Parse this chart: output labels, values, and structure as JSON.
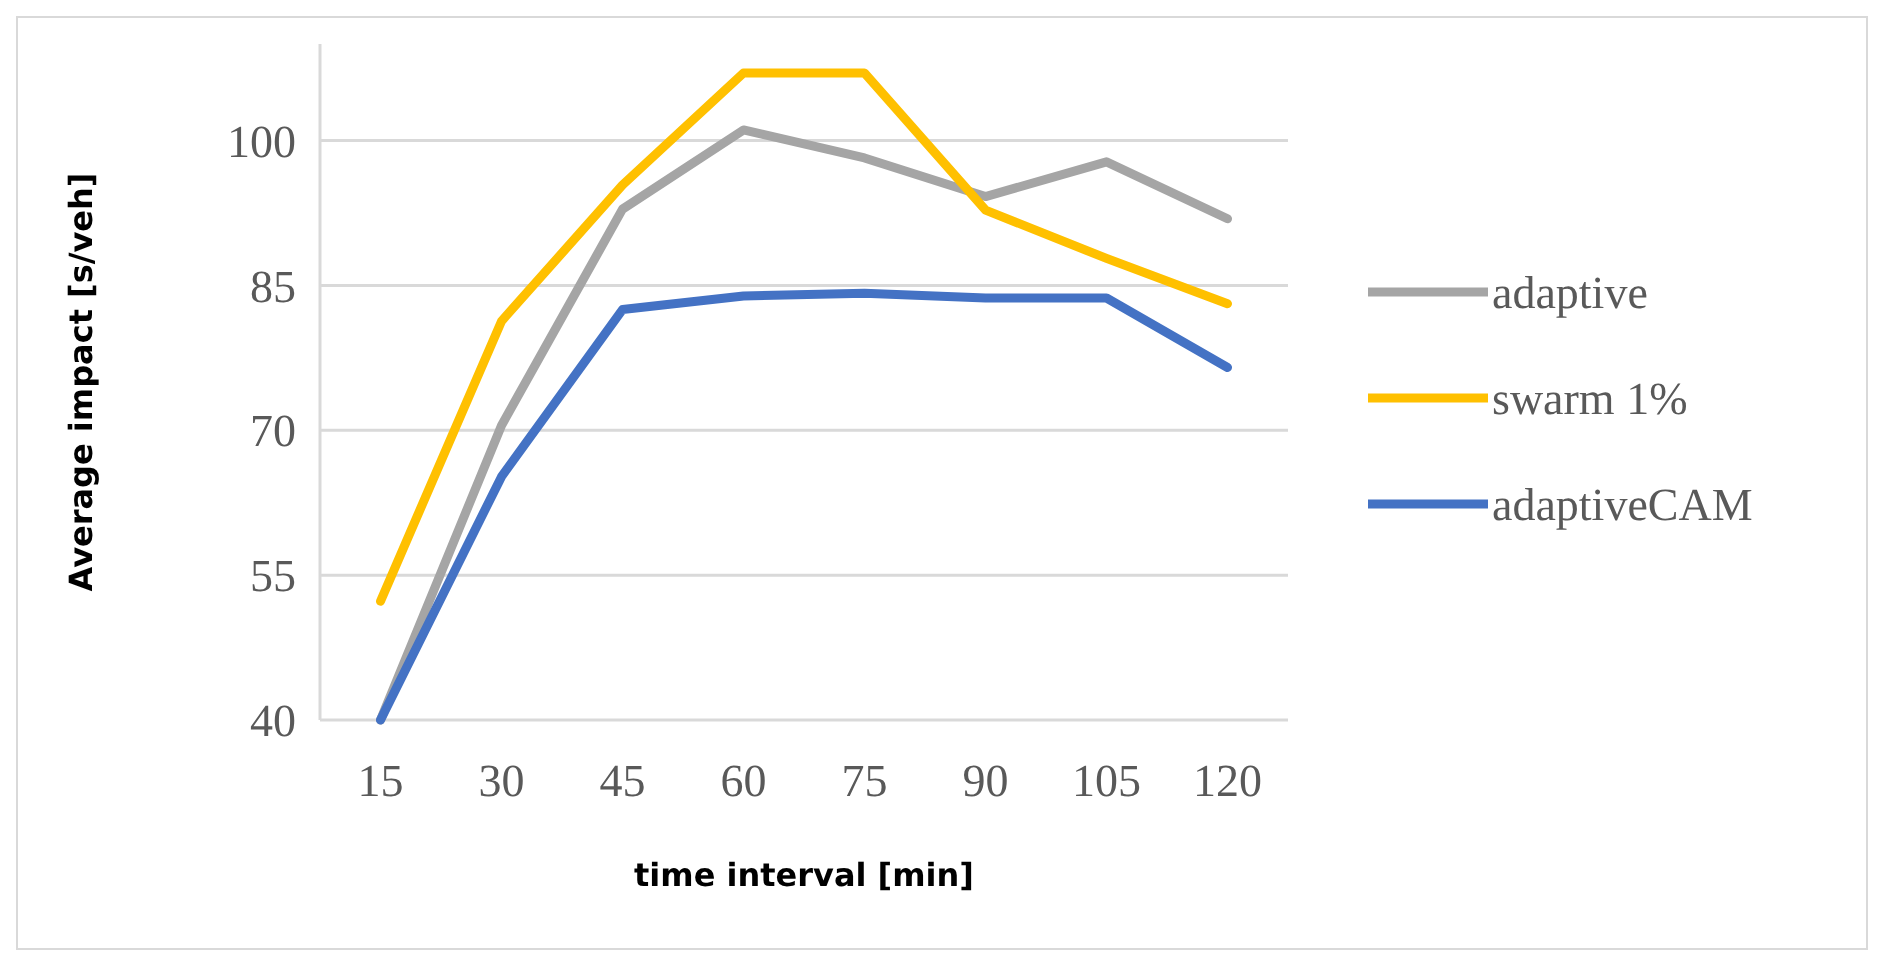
{
  "chart_data": {
    "type": "line",
    "xlabel": "time interval [min]",
    "ylabel": "Average impact [s/veh]",
    "categories": [
      "15",
      "30",
      "45",
      "60",
      "75",
      "90",
      "105",
      "120"
    ],
    "ylim": [
      40,
      110
    ],
    "yticks": [
      40,
      55,
      70,
      85,
      100
    ],
    "grid": "y",
    "legend": "right",
    "marker": "none",
    "line_style": "solid",
    "series": [
      {
        "name": "adaptive",
        "color": "#a5a5a5",
        "values": [
          40,
          70.5,
          92.9,
          101.1,
          98.2,
          94.2,
          97.8,
          91.9
        ]
      },
      {
        "name": "swarm 1%",
        "color": "#ffc000",
        "values": [
          52.3,
          81.3,
          95.4,
          107,
          107,
          92.8,
          87.8,
          83.1
        ]
      },
      {
        "name": "adaptiveCAM",
        "color": "#4472c4",
        "values": [
          40,
          65.2,
          82.5,
          83.9,
          84.2,
          83.7,
          83.7,
          76.5
        ]
      }
    ]
  }
}
